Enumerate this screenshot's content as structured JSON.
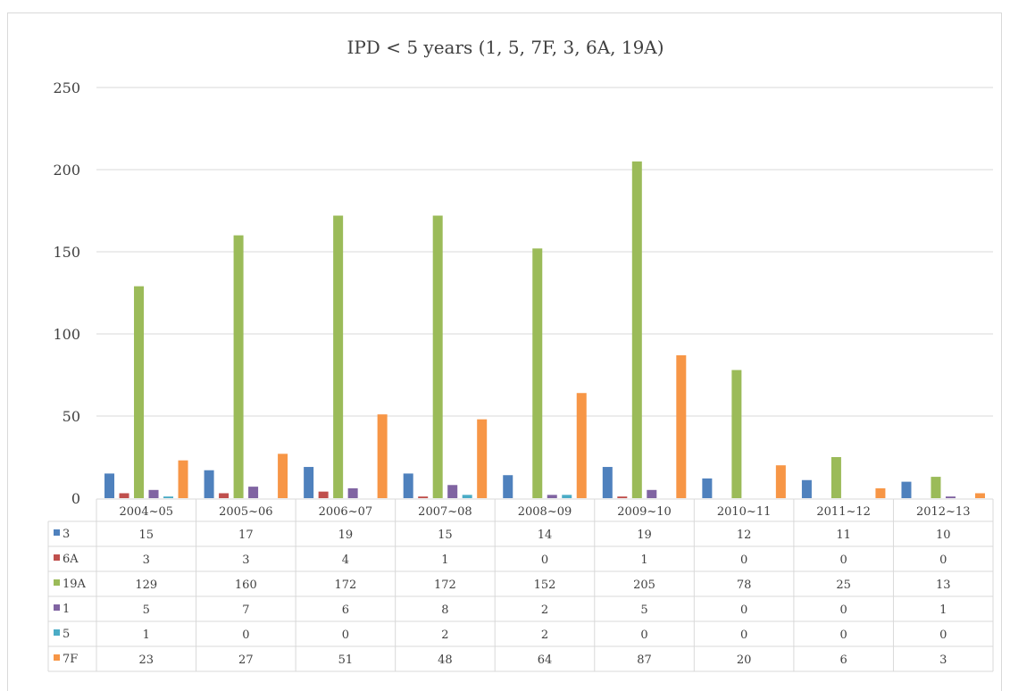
{
  "chart_data": {
    "type": "bar",
    "title": "IPD < 5 years (1, 5, 7F, 3, 6A, 19A)",
    "categories": [
      "2004~05",
      "2005~06",
      "2006~07",
      "2007~08",
      "2008~09",
      "2009~10",
      "2010~11",
      "2011~12",
      "2012~13"
    ],
    "yticks": [
      "0",
      "50",
      "100",
      "150",
      "200",
      "250"
    ],
    "ylim": [
      0,
      250
    ],
    "grid": true,
    "legend": "data-table",
    "series": [
      {
        "name": "3",
        "color": "#4F81BD",
        "values": [
          15,
          17,
          19,
          15,
          14,
          19,
          12,
          11,
          10
        ]
      },
      {
        "name": "6A",
        "color": "#C0504D",
        "values": [
          3,
          3,
          4,
          1,
          0,
          1,
          0,
          0,
          0
        ]
      },
      {
        "name": "19A",
        "color": "#9BBB59",
        "values": [
          129,
          160,
          172,
          172,
          152,
          205,
          78,
          25,
          13
        ]
      },
      {
        "name": "1",
        "color": "#8064A2",
        "values": [
          5,
          7,
          6,
          8,
          2,
          5,
          0,
          0,
          1
        ]
      },
      {
        "name": "5",
        "color": "#4BACC6",
        "values": [
          1,
          0,
          0,
          2,
          2,
          0,
          0,
          0,
          0
        ]
      },
      {
        "name": "7F",
        "color": "#F79646",
        "values": [
          23,
          27,
          51,
          48,
          64,
          87,
          20,
          6,
          3
        ]
      }
    ]
  }
}
